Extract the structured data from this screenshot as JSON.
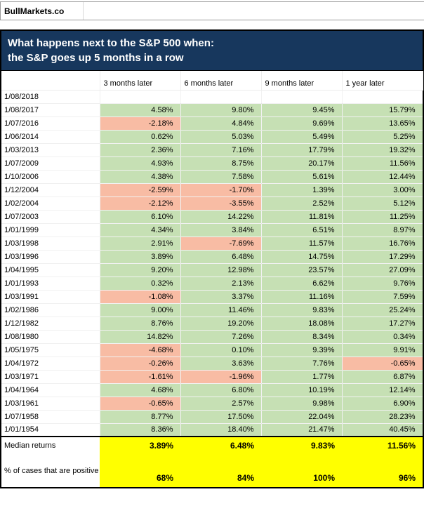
{
  "brand": "BullMarkets.co",
  "title": {
    "line1": "What happens next to the S&P 500 when:",
    "line2": "the S&P goes up 5 months in a row"
  },
  "chart_data": {
    "type": "table",
    "title": "What happens next to the S&P 500 when: the S&P goes up 5 months in a row",
    "columns": [
      "3 months later",
      "6 months later",
      "9 months later",
      "1 year later"
    ],
    "rows": [
      {
        "date": "1/08/2018",
        "values": [
          "",
          "",
          "",
          ""
        ],
        "red_cols": []
      },
      {
        "date": "1/08/2017",
        "values": [
          "4.58%",
          "9.80%",
          "9.45%",
          "15.79%"
        ],
        "red_cols": []
      },
      {
        "date": "1/07/2016",
        "values": [
          "-2.18%",
          "4.84%",
          "9.69%",
          "13.65%"
        ],
        "red_cols": [
          0
        ]
      },
      {
        "date": "1/06/2014",
        "values": [
          "0.62%",
          "5.03%",
          "5.49%",
          "5.25%"
        ],
        "red_cols": []
      },
      {
        "date": "1/03/2013",
        "values": [
          "2.36%",
          "7.16%",
          "17.79%",
          "19.32%"
        ],
        "red_cols": []
      },
      {
        "date": "1/07/2009",
        "values": [
          "4.93%",
          "8.75%",
          "20.17%",
          "11.56%"
        ],
        "red_cols": []
      },
      {
        "date": "1/10/2006",
        "values": [
          "4.38%",
          "7.58%",
          "5.61%",
          "12.44%"
        ],
        "red_cols": []
      },
      {
        "date": "1/12/2004",
        "values": [
          "-2.59%",
          "-1.70%",
          "1.39%",
          "3.00%"
        ],
        "red_cols": [
          0,
          1
        ]
      },
      {
        "date": "1/02/2004",
        "values": [
          "-2.12%",
          "-3.55%",
          "2.52%",
          "5.12%"
        ],
        "red_cols": [
          0,
          1
        ]
      },
      {
        "date": "1/07/2003",
        "values": [
          "6.10%",
          "14.22%",
          "11.81%",
          "11.25%"
        ],
        "red_cols": []
      },
      {
        "date": "1/01/1999",
        "values": [
          "4.34%",
          "3.84%",
          "6.51%",
          "8.97%"
        ],
        "red_cols": []
      },
      {
        "date": "1/03/1998",
        "values": [
          "2.91%",
          "-7.69%",
          "11.57%",
          "16.76%"
        ],
        "red_cols": [
          1
        ]
      },
      {
        "date": "1/03/1996",
        "values": [
          "3.89%",
          "6.48%",
          "14.75%",
          "17.29%"
        ],
        "red_cols": []
      },
      {
        "date": "1/04/1995",
        "values": [
          "9.20%",
          "12.98%",
          "23.57%",
          "27.09%"
        ],
        "red_cols": []
      },
      {
        "date": "1/01/1993",
        "values": [
          "0.32%",
          "2.13%",
          "6.62%",
          "9.76%"
        ],
        "red_cols": []
      },
      {
        "date": "1/03/1991",
        "values": [
          "-1.08%",
          "3.37%",
          "11.16%",
          "7.59%"
        ],
        "red_cols": [
          0
        ]
      },
      {
        "date": "1/02/1986",
        "values": [
          "9.00%",
          "11.46%",
          "9.83%",
          "25.24%"
        ],
        "red_cols": []
      },
      {
        "date": "1/12/1982",
        "values": [
          "8.76%",
          "19.20%",
          "18.08%",
          "17.27%"
        ],
        "red_cols": []
      },
      {
        "date": "1/08/1980",
        "values": [
          "14.82%",
          "7.26%",
          "8.34%",
          "0.34%"
        ],
        "red_cols": []
      },
      {
        "date": "1/05/1975",
        "values": [
          "-4.68%",
          "0.10%",
          "9.39%",
          "9.91%"
        ],
        "red_cols": [
          0
        ]
      },
      {
        "date": "1/04/1972",
        "values": [
          "-0.26%",
          "3.63%",
          "7.76%",
          "-0.65%"
        ],
        "red_cols": [
          0,
          3
        ]
      },
      {
        "date": "1/03/1971",
        "values": [
          "-1.61%",
          "-1.96%",
          "1.77%",
          "6.87%"
        ],
        "red_cols": [
          0,
          1
        ]
      },
      {
        "date": "1/04/1964",
        "values": [
          "4.68%",
          "6.80%",
          "10.19%",
          "12.14%"
        ],
        "red_cols": []
      },
      {
        "date": "1/03/1961",
        "values": [
          "-0.65%",
          "2.57%",
          "9.98%",
          "6.90%"
        ],
        "red_cols": [
          0
        ]
      },
      {
        "date": "1/07/1958",
        "values": [
          "8.77%",
          "17.50%",
          "22.04%",
          "28.23%"
        ],
        "red_cols": []
      },
      {
        "date": "1/01/1954",
        "values": [
          "8.36%",
          "18.40%",
          "21.47%",
          "40.45%"
        ],
        "red_cols": []
      }
    ],
    "summary": {
      "median_label": "Median returns",
      "median_values": [
        "3.89%",
        "6.48%",
        "9.83%",
        "11.56%"
      ],
      "positive_label": "% of cases that are positive",
      "positive_values": [
        "68%",
        "84%",
        "100%",
        "96%"
      ]
    }
  },
  "colors": {
    "positive_fill": "#c6e0b4",
    "negative_fill": "#f8bca4",
    "summary_fill": "#ffff00",
    "title_bg": "#17375d",
    "title_text": "#ffffff"
  }
}
